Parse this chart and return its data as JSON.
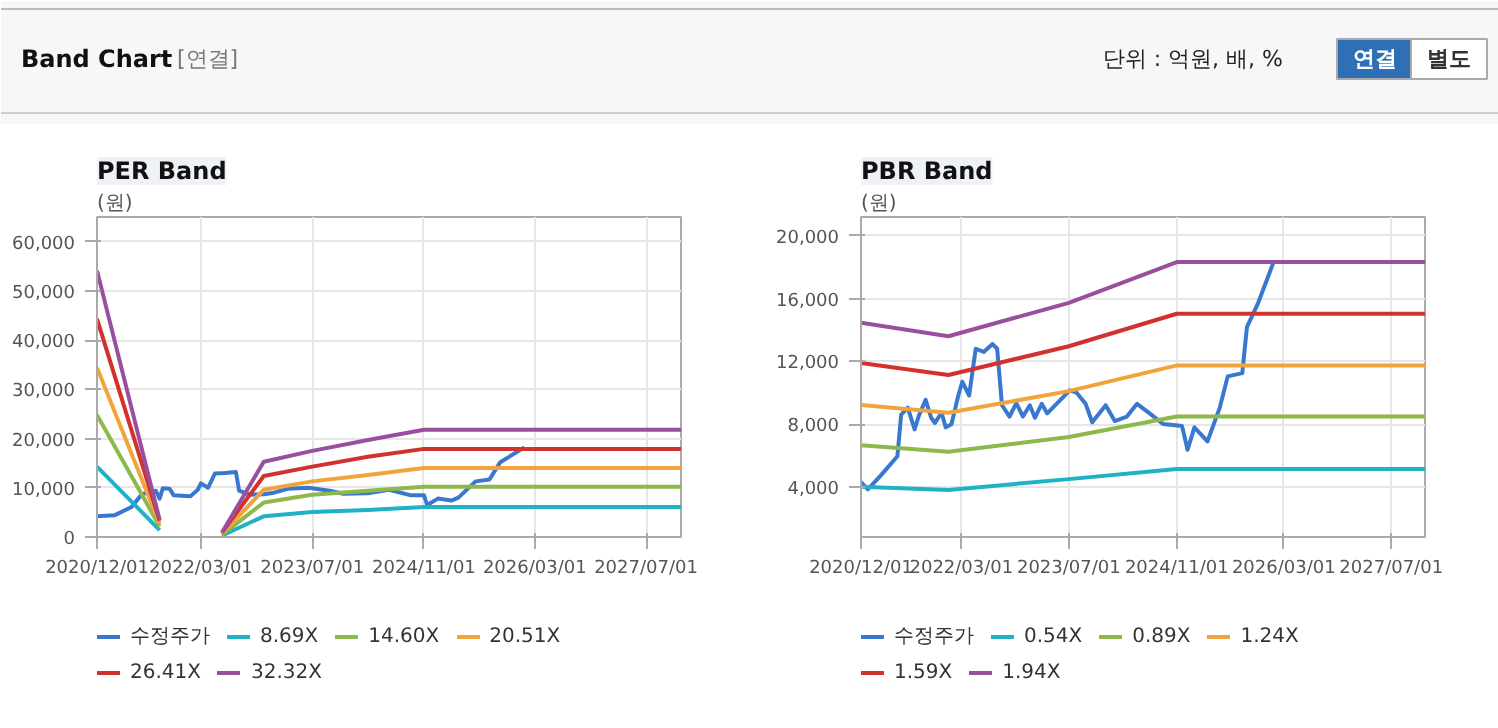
{
  "chart_data": [
    {
      "type": "other",
      "title": "Band Chart",
      "annotations": [
        "[연결]",
        "단위 : 억원, 배, %",
        "연결",
        "별도"
      ]
    },
    {
      "type": "line",
      "title": "PER Band",
      "ylabel": "(원)",
      "xlim": [
        "2020-12-01",
        "2027-12-01"
      ],
      "ylim": [
        0,
        65000
      ],
      "xticks": [
        {
          "value": "2020-12-01",
          "label": "2020/12/01"
        },
        {
          "value": "2022-03-01",
          "label": "2022/03/01"
        },
        {
          "value": "2023-07-01",
          "label": "2023/07/01"
        },
        {
          "value": "2024-11-01",
          "label": "2024/11/01"
        },
        {
          "value": "2026-03-01",
          "label": "2026/03/01"
        },
        {
          "value": "2027-07-01",
          "label": "2027/07/01"
        }
      ],
      "yticks": [
        0,
        {
          "value": 10000,
          "label": "10,000"
        },
        {
          "value": 20000,
          "label": "20,000"
        },
        {
          "value": 30000,
          "label": "30,000"
        },
        {
          "value": 40000,
          "label": "40,000"
        },
        {
          "value": 50000,
          "label": "50,000"
        },
        {
          "value": 60000,
          "label": "60,000"
        }
      ],
      "grid": true,
      "legend": "bottom",
      "series": [
        {
          "name": "수정주가",
          "color": "#3a78cf",
          "x": [
            "2020-12-01",
            "2021-02-15",
            "2021-05-01",
            "2021-06-15",
            "2021-08-15",
            "2021-09-01",
            "2021-09-15",
            "2021-10-15",
            "2021-11-01",
            "2022-01-15",
            "2022-02-15",
            "2022-03-01",
            "2022-04-01",
            "2022-05-01",
            "2022-06-15",
            "2022-08-01",
            "2022-08-15",
            "2022-10-01",
            "2022-12-01",
            "2023-01-15",
            "2023-03-15",
            "2023-06-15",
            "2023-09-15",
            "2023-11-15",
            "2024-03-01",
            "2024-06-01",
            "2024-09-01",
            "2024-11-01",
            "2024-11-15",
            "2025-01-01",
            "2025-03-01",
            "2025-04-01",
            "2025-06-15",
            "2025-08-15",
            "2025-10-01",
            "2026-01-15"
          ],
          "values": [
            4200,
            4400,
            6100,
            8700,
            9400,
            7800,
            9900,
            9800,
            8500,
            8300,
            9600,
            10900,
            10000,
            12900,
            13000,
            13200,
            9400,
            8600,
            8700,
            9000,
            9800,
            10000,
            9400,
            8800,
            8900,
            9600,
            8500,
            8500,
            6500,
            7800,
            7400,
            8000,
            11300,
            11700,
            15200,
            18200
          ]
        },
        {
          "name": "8.69X",
          "color": "#20b2c4",
          "x": [
            "2020-12-01",
            "2021-09-01",
            "2022-01-01",
            "2022-06-01",
            "2022-12-01",
            "2023-07-01",
            "2024-03-01",
            "2024-11-01",
            "2027-12-01"
          ],
          "values": [
            14300,
            1400,
            null,
            300,
            4200,
            5100,
            5500,
            6100,
            6100
          ]
        },
        {
          "name": "14.60X",
          "color": "#8cb84c",
          "x": [
            "2020-12-01",
            "2021-09-01",
            "2022-01-01",
            "2022-06-01",
            "2022-12-01",
            "2023-07-01",
            "2024-03-01",
            "2024-11-01",
            "2027-12-01"
          ],
          "values": [
            24800,
            2200,
            null,
            500,
            7000,
            8600,
            9400,
            10200,
            10200
          ]
        },
        {
          "name": "20.51X",
          "color": "#f2a43a",
          "x": [
            "2020-12-01",
            "2021-09-01",
            "2022-01-01",
            "2022-06-01",
            "2022-12-01",
            "2023-07-01",
            "2024-03-01",
            "2024-11-01",
            "2027-12-01"
          ],
          "values": [
            34400,
            2700,
            null,
            700,
            9600,
            11300,
            12600,
            14000,
            14000
          ]
        },
        {
          "name": "26.41X",
          "color": "#d2322d",
          "x": [
            "2020-12-01",
            "2021-09-01",
            "2022-01-01",
            "2022-06-01",
            "2022-12-01",
            "2023-07-01",
            "2024-03-01",
            "2024-11-01",
            "2027-12-01"
          ],
          "values": [
            44300,
            3300,
            null,
            900,
            12400,
            14300,
            16300,
            17900,
            17900
          ]
        },
        {
          "name": "32.32X",
          "color": "#9a4f9e",
          "x": [
            "2020-12-01",
            "2021-09-01",
            "2022-01-01",
            "2022-06-01",
            "2022-12-01",
            "2023-07-01",
            "2024-03-01",
            "2024-11-01",
            "2027-12-01"
          ],
          "values": [
            54100,
            3500,
            null,
            900,
            15300,
            17500,
            19700,
            21800,
            21800
          ]
        }
      ]
    },
    {
      "type": "line",
      "title": "PBR Band",
      "ylabel": "(원)",
      "xlim": [
        "2020-12-01",
        "2027-12-01"
      ],
      "ylim": [
        800,
        21200
      ],
      "xticks": [
        {
          "value": "2020-12-01",
          "label": "2020/12/01"
        },
        {
          "value": "2022-03-01",
          "label": "2022/03/01"
        },
        {
          "value": "2023-07-01",
          "label": "2023/07/01"
        },
        {
          "value": "2024-11-01",
          "label": "2024/11/01"
        },
        {
          "value": "2026-03-01",
          "label": "2026/03/01"
        },
        {
          "value": "2027-07-01",
          "label": "2027/07/01"
        }
      ],
      "yticks": [
        {
          "value": 4000,
          "label": "4,000"
        },
        {
          "value": 8000,
          "label": "8,000"
        },
        {
          "value": 12000,
          "label": "12,000"
        },
        {
          "value": 16000,
          "label": "16,000"
        },
        {
          "value": 20000,
          "label": "20,000"
        }
      ],
      "grid": true,
      "legend": "bottom",
      "series": [
        {
          "name": "수정주가",
          "color": "#3a78cf",
          "x": [
            "2020-12-01",
            "2021-01-01",
            "2021-03-01",
            "2021-05-15",
            "2021-06-01",
            "2021-07-01",
            "2021-08-01",
            "2021-08-20",
            "2021-09-20",
            "2021-10-15",
            "2021-11-01",
            "2021-12-01",
            "2021-12-20",
            "2022-01-15",
            "2022-02-15",
            "2022-03-05",
            "2022-04-05",
            "2022-05-05",
            "2022-06-10",
            "2022-07-20",
            "2022-08-10",
            "2022-09-01",
            "2022-10-05",
            "2022-11-05",
            "2022-12-05",
            "2023-01-05",
            "2023-01-28",
            "2023-02-28",
            "2023-03-25",
            "2023-07-05",
            "2023-08-05",
            "2023-09-15",
            "2023-10-15",
            "2023-12-15",
            "2024-01-25",
            "2024-03-20",
            "2024-05-05",
            "2024-07-01",
            "2024-09-01",
            "2024-11-25",
            "2024-12-20",
            "2025-01-20",
            "2025-03-20",
            "2025-05-15",
            "2025-06-20",
            "2025-08-25",
            "2025-09-15",
            "2025-11-05",
            "2026-01-15"
          ],
          "values": [
            4300,
            3840,
            4730,
            5950,
            8600,
            9050,
            7660,
            8520,
            9540,
            8400,
            8070,
            8720,
            7790,
            7990,
            9820,
            10700,
            9820,
            12800,
            12600,
            13100,
            12800,
            9200,
            8480,
            9330,
            8480,
            9200,
            8400,
            9290,
            8680,
            10150,
            10000,
            9290,
            8110,
            9200,
            8190,
            8480,
            9290,
            8680,
            8000,
            7870,
            6360,
            7790,
            6890,
            9050,
            11040,
            11250,
            14180,
            15730,
            18370
          ]
        },
        {
          "name": "0.54X",
          "color": "#20b2c4",
          "x": [
            "2020-12-01",
            "2022-01-01",
            "2023-07-01",
            "2024-11-01",
            "2027-12-01"
          ],
          "values": [
            4000,
            3800,
            4490,
            5140,
            5140
          ]
        },
        {
          "name": "0.89X",
          "color": "#8cb84c",
          "x": [
            "2020-12-01",
            "2022-01-01",
            "2023-07-01",
            "2024-11-01",
            "2027-12-01"
          ],
          "values": [
            6650,
            6240,
            7180,
            8480,
            8480
          ]
        },
        {
          "name": "1.24X",
          "color": "#f2a43a",
          "x": [
            "2020-12-01",
            "2022-01-01",
            "2023-07-01",
            "2024-11-01",
            "2027-12-01"
          ],
          "values": [
            9210,
            8720,
            10100,
            11740,
            11740
          ]
        },
        {
          "name": "1.59X",
          "color": "#d2322d",
          "x": [
            "2020-12-01",
            "2022-01-01",
            "2023-07-01",
            "2024-11-01",
            "2027-12-01"
          ],
          "values": [
            11900,
            11130,
            12960,
            15030,
            15030
          ]
        },
        {
          "name": "1.94X",
          "color": "#9a4f9e",
          "x": [
            "2020-12-01",
            "2022-01-01",
            "2023-07-01",
            "2024-11-01",
            "2027-12-01"
          ],
          "values": [
            14460,
            13600,
            15730,
            18330,
            18330
          ]
        }
      ]
    }
  ]
}
